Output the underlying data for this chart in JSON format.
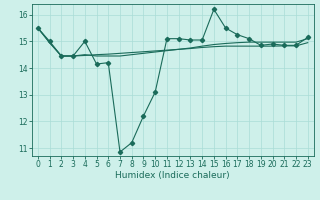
{
  "title": "",
  "xlabel": "Humidex (Indice chaleur)",
  "ylabel": "",
  "bg_color": "#cef0ea",
  "grid_color": "#aaddd6",
  "line_color": "#1a6b5a",
  "xlim": [
    -0.5,
    23.5
  ],
  "ylim": [
    10.7,
    16.4
  ],
  "yticks": [
    11,
    12,
    13,
    14,
    15,
    16
  ],
  "xticks": [
    0,
    1,
    2,
    3,
    4,
    5,
    6,
    7,
    8,
    9,
    10,
    11,
    12,
    13,
    14,
    15,
    16,
    17,
    18,
    19,
    20,
    21,
    22,
    23
  ],
  "line1_x": [
    0,
    1,
    2,
    3,
    4,
    5,
    6,
    7,
    8,
    9,
    10,
    11,
    12,
    13,
    14,
    15,
    16,
    17,
    18,
    19,
    20,
    21,
    22,
    23
  ],
  "line1_y": [
    15.5,
    15.0,
    14.45,
    14.45,
    15.0,
    14.15,
    14.2,
    10.85,
    11.2,
    12.2,
    13.1,
    15.1,
    15.1,
    15.05,
    15.05,
    16.2,
    15.5,
    15.25,
    15.1,
    14.85,
    14.9,
    14.85,
    14.85,
    15.15
  ],
  "line2_x": [
    0,
    1,
    2,
    3,
    4,
    5,
    6,
    7,
    8,
    9,
    10,
    11,
    12,
    13,
    14,
    15,
    16,
    17,
    18,
    19,
    20,
    21,
    22,
    23
  ],
  "line2_y": [
    15.5,
    14.95,
    14.45,
    14.45,
    14.5,
    14.45,
    14.45,
    14.45,
    14.5,
    14.55,
    14.6,
    14.65,
    14.7,
    14.75,
    14.82,
    14.88,
    14.92,
    14.95,
    14.97,
    14.97,
    14.97,
    14.97,
    14.97,
    15.1
  ],
  "line3_x": [
    0,
    1,
    2,
    3,
    4,
    5,
    6,
    7,
    8,
    9,
    10,
    11,
    12,
    13,
    14,
    15,
    16,
    17,
    18,
    19,
    20,
    21,
    22,
    23
  ],
  "line3_y": [
    15.5,
    14.95,
    14.45,
    14.45,
    14.47,
    14.5,
    14.52,
    14.55,
    14.58,
    14.61,
    14.64,
    14.67,
    14.7,
    14.73,
    14.77,
    14.8,
    14.82,
    14.82,
    14.82,
    14.82,
    14.82,
    14.83,
    14.83,
    14.95
  ]
}
